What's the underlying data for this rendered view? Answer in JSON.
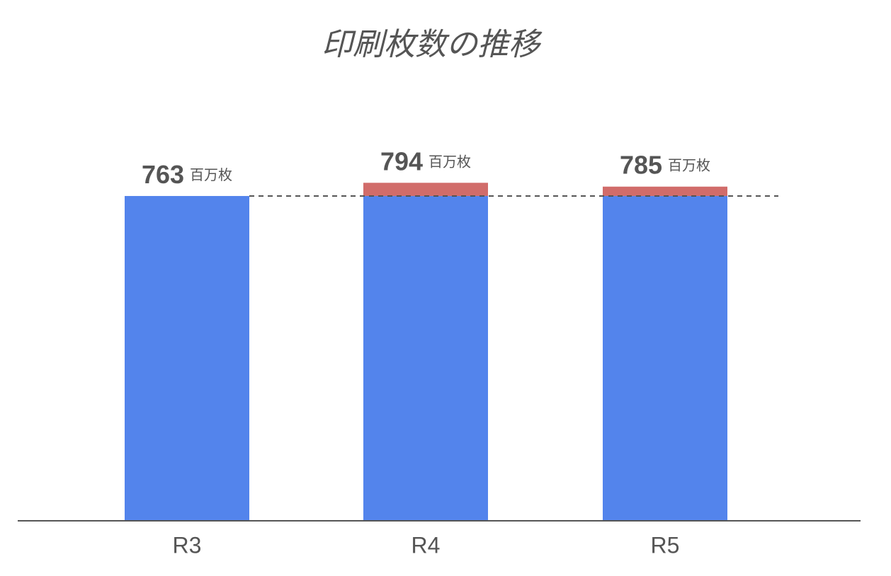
{
  "chart_data": {
    "type": "stacked_bar",
    "title": "印刷枚数の推移",
    "categories": [
      "R3",
      "R4",
      "R5"
    ],
    "series": [
      {
        "color": "#5384ec",
        "values": [
          763,
          763,
          763
        ]
      },
      {
        "color": "#d16c6a",
        "values": [
          null,
          31,
          22
        ]
      }
    ],
    "totals": [
      763,
      794,
      785
    ],
    "unit": "百万枚",
    "reference_line": 763,
    "ylim": [
      0,
      1000
    ]
  }
}
